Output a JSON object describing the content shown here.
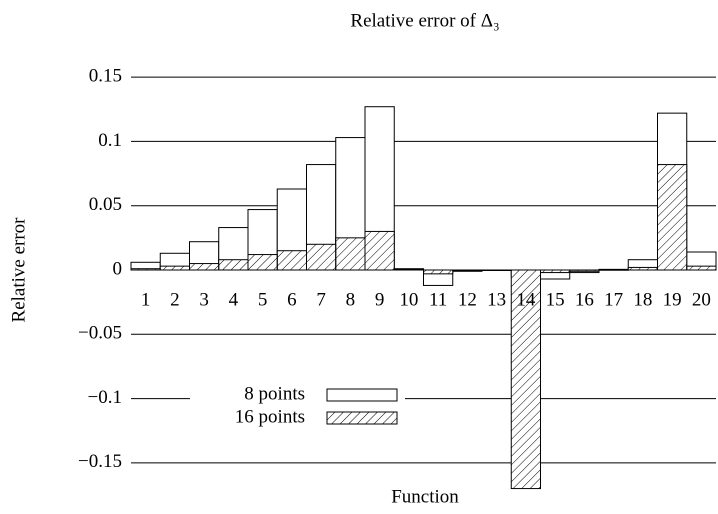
{
  "chart_data": {
    "type": "bar",
    "title": "Relative error of Δ₃",
    "x_label": "Function",
    "y_label": "Relative error",
    "categories": [
      "1",
      "2",
      "3",
      "4",
      "5",
      "6",
      "7",
      "8",
      "9",
      "10",
      "11",
      "12",
      "13",
      "14",
      "15",
      "16",
      "17",
      "18",
      "19",
      "20"
    ],
    "series": [
      {
        "name": "8 points",
        "color": "#ffffff",
        "hatch": false,
        "values": [
          0.006,
          0.013,
          0.022,
          0.033,
          0.047,
          0.063,
          0.082,
          0.103,
          0.127,
          0.001,
          -0.012,
          -0.001,
          0,
          -0.005,
          -0.007,
          -0.002,
          0.0005,
          0.008,
          0.122,
          0.014
        ]
      },
      {
        "name": "16 points",
        "color": "#ffffff",
        "hatch": true,
        "values": [
          0.001,
          0.003,
          0.005,
          0.008,
          0.012,
          0.015,
          0.02,
          0.025,
          0.03,
          0.0005,
          -0.003,
          -0.0005,
          0,
          -0.17,
          -0.002,
          -0.001,
          0.0002,
          0.002,
          0.082,
          0.003
        ]
      }
    ],
    "ylim": [
      -0.175,
      0.175
    ],
    "yticks": [
      {
        "value": -0.15,
        "label": "−0.15"
      },
      {
        "value": -0.1,
        "label": "−0.1"
      },
      {
        "value": -0.05,
        "label": "−0.05"
      },
      0,
      0.05,
      0.1,
      0.15
    ],
    "grid": true,
    "legend": "lower left"
  }
}
